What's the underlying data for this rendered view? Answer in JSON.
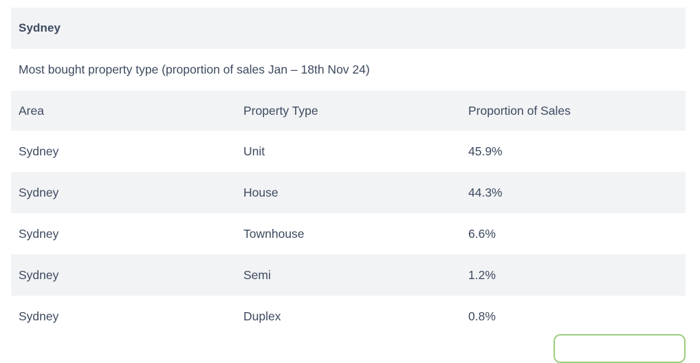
{
  "card": {
    "title": "Sydney",
    "subtitle": "Most bought property type (proportion of sales Jan – 18th Nov 24)",
    "table": {
      "columns": [
        "Area",
        "Property Type",
        "Proportion of Sales"
      ],
      "rows": [
        [
          "Sydney",
          "Unit",
          "45.9%"
        ],
        [
          "Sydney",
          "House",
          "44.3%"
        ],
        [
          "Sydney",
          "Townhouse",
          "6.6%"
        ],
        [
          "Sydney",
          "Semi",
          "1.2%"
        ],
        [
          "Sydney",
          "Duplex",
          "0.8%"
        ]
      ]
    }
  },
  "colors": {
    "stripe": "#f2f3f5",
    "text": "#3d4a5f",
    "button_border": "#9ccd7e",
    "background": "#ffffff"
  }
}
